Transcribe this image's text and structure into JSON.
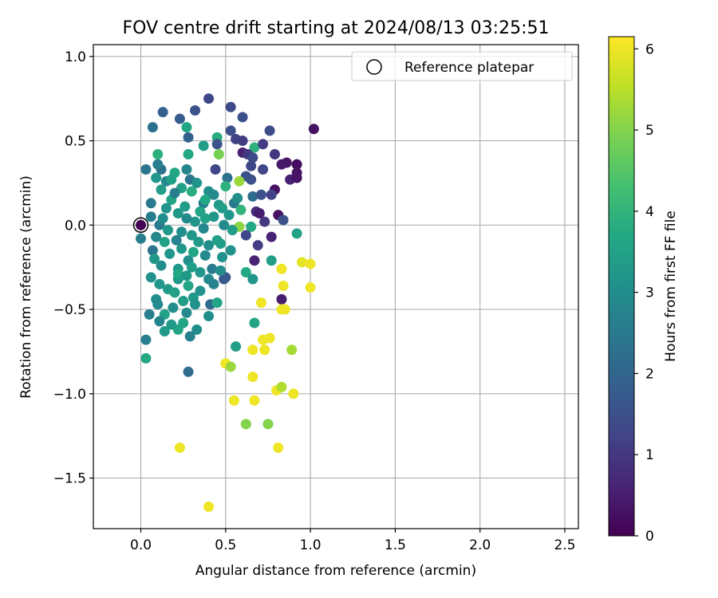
{
  "chart_data": {
    "type": "scatter",
    "title": "FOV centre drift starting at 2024/08/13 03:25:51",
    "xlabel": "Angular distance from reference (arcmin)",
    "ylabel": "Rotation from reference (arcmin)",
    "xlim": [
      -0.28,
      2.58
    ],
    "ylim": [
      -1.8,
      1.07
    ],
    "xticks": [
      0.0,
      0.5,
      1.0,
      1.5,
      2.0,
      2.5
    ],
    "xtick_labels": [
      "0.0",
      "0.5",
      "1.0",
      "1.5",
      "2.0",
      "2.5"
    ],
    "yticks": [
      1.0,
      0.5,
      0.0,
      -0.5,
      -1.0,
      -1.5
    ],
    "ytick_labels": [
      "1.0",
      "0.5",
      "0.0",
      "−0.5",
      "−1.0",
      "−1.5"
    ],
    "grid": true,
    "legend": {
      "placement": "top-right",
      "entries": [
        "Reference platepar"
      ]
    },
    "reference_point": [
      0.0,
      0.0
    ],
    "colorbar": {
      "label": "Hours from first FF file",
      "range": [
        0,
        6.15
      ],
      "ticks": [
        0,
        1,
        2,
        3,
        4,
        5,
        6
      ],
      "tick_labels": [
        "0",
        "1",
        "2",
        "3",
        "4",
        "5",
        "6"
      ],
      "colormap": "viridis"
    },
    "points": [
      [
        0.4,
        0.75,
        1.3
      ],
      [
        0.53,
        0.7,
        1.4
      ],
      [
        0.6,
        0.64,
        1.5
      ],
      [
        1.02,
        0.57,
        0.3
      ],
      [
        0.13,
        0.67,
        1.9
      ],
      [
        0.32,
        0.68,
        1.6
      ],
      [
        0.23,
        0.63,
        1.8
      ],
      [
        0.07,
        0.58,
        2.3
      ],
      [
        0.27,
        0.58,
        3.6
      ],
      [
        0.53,
        0.56,
        1.5
      ],
      [
        0.76,
        0.56,
        1.4
      ],
      [
        0.28,
        0.52,
        1.9
      ],
      [
        0.45,
        0.52,
        3.8
      ],
      [
        0.56,
        0.51,
        1.2
      ],
      [
        0.6,
        0.5,
        1.1
      ],
      [
        0.37,
        0.47,
        3.4
      ],
      [
        0.45,
        0.48,
        1.6
      ],
      [
        0.67,
        0.46,
        3.9
      ],
      [
        0.72,
        0.48,
        1.1
      ],
      [
        0.1,
        0.42,
        3.9
      ],
      [
        0.28,
        0.42,
        3.7
      ],
      [
        0.46,
        0.42,
        4.9
      ],
      [
        0.6,
        0.43,
        0.6
      ],
      [
        0.63,
        0.42,
        1.0
      ],
      [
        0.79,
        0.42,
        1.0
      ],
      [
        0.66,
        0.4,
        1.4
      ],
      [
        0.83,
        0.36,
        0.4
      ],
      [
        0.86,
        0.37,
        0.4
      ],
      [
        0.92,
        0.36,
        0.2
      ],
      [
        0.03,
        0.33,
        2.4
      ],
      [
        0.12,
        0.33,
        2.3
      ],
      [
        0.27,
        0.33,
        2.8
      ],
      [
        0.44,
        0.33,
        1.3
      ],
      [
        0.65,
        0.35,
        1.3
      ],
      [
        0.72,
        0.33,
        1.3
      ],
      [
        0.92,
        0.31,
        0.3
      ],
      [
        0.1,
        0.36,
        2.6
      ],
      [
        0.2,
        0.31,
        3.7
      ],
      [
        0.51,
        0.28,
        2.3
      ],
      [
        0.62,
        0.29,
        1.6
      ],
      [
        0.88,
        0.27,
        0.6
      ],
      [
        0.92,
        0.28,
        0.3
      ],
      [
        0.15,
        0.26,
        2.8
      ],
      [
        0.29,
        0.27,
        2.4
      ],
      [
        0.58,
        0.26,
        5.2
      ],
      [
        0.65,
        0.27,
        1.5
      ],
      [
        0.79,
        0.21,
        0.3
      ],
      [
        0.24,
        0.22,
        3.5
      ],
      [
        0.5,
        0.23,
        3.9
      ],
      [
        0.66,
        0.17,
        2.2
      ],
      [
        0.71,
        0.18,
        1.5
      ],
      [
        0.06,
        0.13,
        2.5
      ],
      [
        0.18,
        0.15,
        3.6
      ],
      [
        0.37,
        0.13,
        2.6
      ],
      [
        0.55,
        0.13,
        2.5
      ],
      [
        0.77,
        0.18,
        1.2
      ],
      [
        0.06,
        0.05,
        2.6
      ],
      [
        0.22,
        0.07,
        3.3
      ],
      [
        0.43,
        0.05,
        3.2
      ],
      [
        0.59,
        0.09,
        4.0
      ],
      [
        0.68,
        0.08,
        0.8
      ],
      [
        0.7,
        0.07,
        0.5
      ],
      [
        0.81,
        0.06,
        0.3
      ],
      [
        0.84,
        0.03,
        1.5
      ],
      [
        0.11,
        0.0,
        2.5
      ],
      [
        0.32,
        0.02,
        3.2
      ],
      [
        0.49,
        0.0,
        2.9
      ],
      [
        0.58,
        -0.01,
        5.1
      ],
      [
        0.65,
        -0.01,
        3.7
      ],
      [
        0.73,
        0.02,
        1.0
      ],
      [
        0.0,
        -0.08,
        2.6
      ],
      [
        0.09,
        -0.07,
        2.8
      ],
      [
        0.3,
        -0.06,
        3.2
      ],
      [
        0.45,
        -0.09,
        3.5
      ],
      [
        0.62,
        -0.06,
        1.3
      ],
      [
        0.77,
        -0.07,
        0.6
      ],
      [
        0.92,
        -0.05,
        3.5
      ],
      [
        0.07,
        -0.15,
        2.4
      ],
      [
        0.24,
        -0.14,
        3.3
      ],
      [
        0.47,
        -0.11,
        3.4
      ],
      [
        0.69,
        -0.12,
        1.1
      ],
      [
        0.08,
        -0.2,
        3.3
      ],
      [
        0.28,
        -0.21,
        3.0
      ],
      [
        0.48,
        -0.19,
        3.1
      ],
      [
        0.67,
        -0.21,
        0.6
      ],
      [
        0.77,
        -0.21,
        3.4
      ],
      [
        0.95,
        -0.22,
        5.9
      ],
      [
        1.0,
        -0.23,
        6.0
      ],
      [
        0.22,
        -0.26,
        3.3
      ],
      [
        0.42,
        -0.26,
        2.5
      ],
      [
        0.62,
        -0.28,
        3.7
      ],
      [
        0.83,
        -0.26,
        6.0
      ],
      [
        0.06,
        -0.31,
        3.1
      ],
      [
        0.22,
        -0.32,
        3.3
      ],
      [
        0.4,
        -0.32,
        2.9
      ],
      [
        0.5,
        -0.31,
        1.7
      ],
      [
        0.66,
        -0.32,
        3.2
      ],
      [
        0.11,
        -0.35,
        3.2
      ],
      [
        0.28,
        -0.36,
        3.6
      ],
      [
        0.49,
        -0.32,
        1.7
      ],
      [
        0.84,
        -0.36,
        6.0
      ],
      [
        1.0,
        -0.37,
        6.0
      ],
      [
        0.09,
        -0.44,
        3.0
      ],
      [
        0.31,
        -0.43,
        3.3
      ],
      [
        0.71,
        -0.46,
        6.0
      ],
      [
        0.83,
        -0.44,
        0.5
      ],
      [
        0.41,
        -0.47,
        2.2
      ],
      [
        0.45,
        -0.46,
        3.6
      ],
      [
        0.83,
        -0.5,
        6.0
      ],
      [
        0.85,
        -0.5,
        6.0
      ],
      [
        0.05,
        -0.53,
        2.6
      ],
      [
        0.14,
        -0.53,
        3.5
      ],
      [
        0.27,
        -0.52,
        2.9
      ],
      [
        0.4,
        -0.54,
        3.0
      ],
      [
        0.67,
        -0.58,
        3.6
      ],
      [
        0.14,
        -0.63,
        3.3
      ],
      [
        0.22,
        -0.62,
        3.6
      ],
      [
        0.33,
        -0.62,
        3.0
      ],
      [
        0.03,
        -0.68,
        2.6
      ],
      [
        0.29,
        -0.66,
        2.7
      ],
      [
        0.72,
        -0.68,
        6.0
      ],
      [
        0.76,
        -0.67,
        6.0
      ],
      [
        0.56,
        -0.72,
        3.4
      ],
      [
        0.66,
        -0.74,
        6.0
      ],
      [
        0.73,
        -0.74,
        6.0
      ],
      [
        0.89,
        -0.74,
        5.3
      ],
      [
        0.03,
        -0.79,
        3.7
      ],
      [
        0.5,
        -0.82,
        6.0
      ],
      [
        0.53,
        -0.84,
        5.2
      ],
      [
        0.28,
        -0.87,
        2.2
      ],
      [
        0.66,
        -0.9,
        6.0
      ],
      [
        0.8,
        -0.98,
        6.0
      ],
      [
        0.83,
        -0.96,
        5.4
      ],
      [
        0.9,
        -1.0,
        6.0
      ],
      [
        0.55,
        -1.04,
        6.0
      ],
      [
        0.67,
        -1.04,
        6.0
      ],
      [
        0.62,
        -1.18,
        5.0
      ],
      [
        0.75,
        -1.18,
        5.0
      ],
      [
        0.23,
        -1.32,
        6.0
      ],
      [
        0.81,
        -1.32,
        6.0
      ],
      [
        0.4,
        -1.67,
        6.0
      ],
      [
        0.12,
        0.21,
        3.4
      ],
      [
        0.2,
        0.19,
        2.6
      ],
      [
        0.3,
        0.2,
        3.8
      ],
      [
        0.4,
        0.2,
        3.0
      ],
      [
        0.15,
        0.1,
        3.1
      ],
      [
        0.26,
        0.11,
        3.4
      ],
      [
        0.35,
        0.08,
        3.6
      ],
      [
        0.46,
        0.12,
        3.3
      ],
      [
        0.13,
        0.04,
        3.0
      ],
      [
        0.27,
        0.04,
        2.9
      ],
      [
        0.38,
        0.04,
        3.5
      ],
      [
        0.52,
        0.06,
        3.2
      ],
      [
        0.16,
        -0.03,
        3.3
      ],
      [
        0.24,
        -0.04,
        3.0
      ],
      [
        0.37,
        -0.02,
        2.8
      ],
      [
        0.54,
        -0.03,
        3.4
      ],
      [
        0.14,
        -0.1,
        3.5
      ],
      [
        0.21,
        -0.09,
        2.7
      ],
      [
        0.34,
        -0.1,
        3.3
      ],
      [
        0.4,
        -0.12,
        3.0
      ],
      [
        0.17,
        -0.17,
        3.2
      ],
      [
        0.31,
        -0.16,
        3.6
      ],
      [
        0.38,
        -0.18,
        2.9
      ],
      [
        0.53,
        -0.15,
        3.1
      ],
      [
        0.12,
        -0.24,
        3.0
      ],
      [
        0.3,
        -0.25,
        3.4
      ],
      [
        0.35,
        -0.28,
        3.2
      ],
      [
        0.47,
        -0.27,
        3.0
      ],
      [
        0.16,
        -0.38,
        3.3
      ],
      [
        0.2,
        -0.4,
        3.5
      ],
      [
        0.35,
        -0.39,
        3.1
      ],
      [
        0.25,
        -0.45,
        3.4
      ],
      [
        0.19,
        -0.49,
        3.0
      ],
      [
        0.11,
        -0.57,
        2.8
      ],
      [
        0.18,
        -0.59,
        3.3
      ],
      [
        0.25,
        -0.58,
        3.6
      ],
      [
        0.09,
        0.28,
        3.2
      ],
      [
        0.18,
        0.27,
        3.5
      ],
      [
        0.33,
        0.25,
        3.1
      ],
      [
        0.38,
        0.15,
        3.7
      ],
      [
        0.43,
        0.18,
        2.9
      ],
      [
        0.48,
        0.1,
        3.4
      ],
      [
        0.57,
        0.16,
        3.0
      ],
      [
        0.22,
        -0.29,
        3.7
      ],
      [
        0.43,
        -0.35,
        2.7
      ],
      [
        0.27,
        -0.3,
        3.3
      ],
      [
        0.32,
        -0.47,
        3.1
      ],
      [
        0.1,
        -0.47,
        2.9
      ]
    ]
  }
}
